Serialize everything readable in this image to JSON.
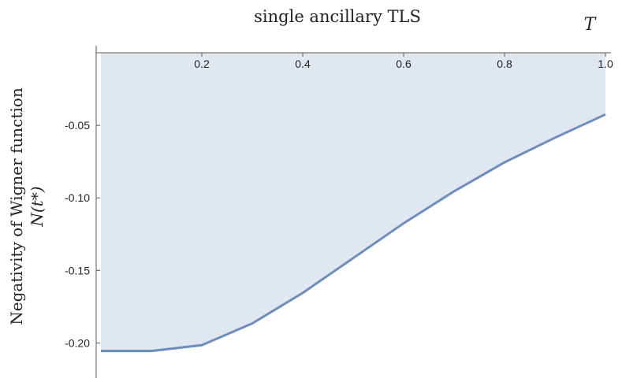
{
  "chart_data": {
    "type": "area",
    "title": "single ancillary TLS",
    "xlabel": "T",
    "ylabel_line1": "Negativity of Wigner function",
    "ylabel_line2": "N(t*)",
    "xlim": [
      0.0,
      1.0
    ],
    "ylim": [
      -0.222,
      0.0
    ],
    "x_ticks": [
      {
        "value": 0.2,
        "label": "0.2"
      },
      {
        "value": 0.4,
        "label": "0.4"
      },
      {
        "value": 0.6,
        "label": "0.6"
      },
      {
        "value": 0.8,
        "label": "0.8"
      },
      {
        "value": 1.0,
        "label": "1.0"
      }
    ],
    "y_ticks": [
      {
        "value": -0.05,
        "label": "-0.05"
      },
      {
        "value": -0.1,
        "label": "-0.10"
      },
      {
        "value": -0.15,
        "label": "-0.15"
      },
      {
        "value": -0.2,
        "label": "-0.20"
      }
    ],
    "fill_to": "top",
    "series": [
      {
        "x": [
          0.0,
          0.1,
          0.2,
          0.3,
          0.4,
          0.5,
          0.6,
          0.7,
          0.8,
          0.9,
          1.0
        ],
        "y": [
          -0.2055,
          -0.2055,
          -0.2015,
          -0.1865,
          -0.1655,
          -0.1415,
          -0.1175,
          -0.0955,
          -0.0755,
          -0.0585,
          -0.0425
        ]
      }
    ],
    "colors": {
      "line": "#6c8ebf",
      "fill": "#e1e7f1"
    },
    "grid": false
  }
}
